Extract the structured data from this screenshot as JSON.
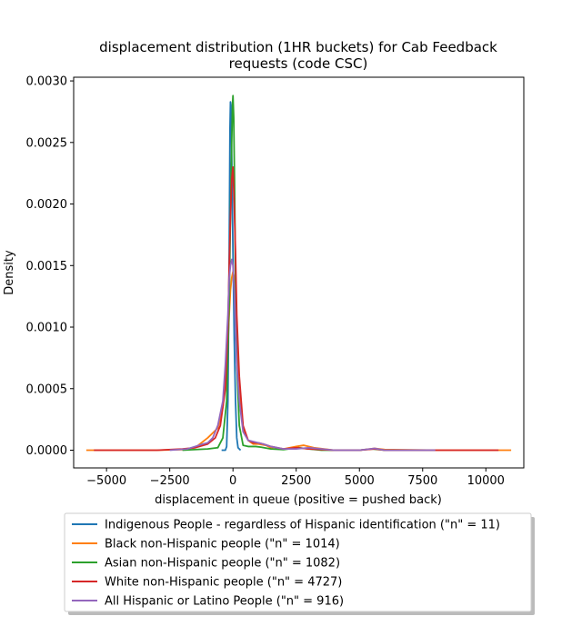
{
  "chart_data": {
    "type": "line",
    "title_line1": "displacement distribution (1HR buckets) for Cab Feedback",
    "title_line2": "requests (code CSC)",
    "xlabel": "displacement in queue (positive = pushed back)",
    "ylabel": "Density",
    "xlim": [
      -6300,
      11500
    ],
    "ylim": [
      -0.000144,
      0.00303
    ],
    "xticks": [
      -5000,
      -2500,
      0,
      2500,
      5000,
      7500,
      10000
    ],
    "xtick_labels": [
      "−5000",
      "−2500",
      "0",
      "2500",
      "5000",
      "7500",
      "10000"
    ],
    "yticks": [
      0.0,
      0.0005,
      0.001,
      0.0015,
      0.002,
      0.0025,
      0.003
    ],
    "ytick_labels": [
      "0.0000",
      "0.0005",
      "0.0010",
      "0.0015",
      "0.0020",
      "0.0025",
      "0.0030"
    ],
    "grid": false,
    "legend_position": "below-plot",
    "series": [
      {
        "name": "Indigenous People - regardless of Hispanic identification (\"n\" = 11)",
        "color": "#1f77b4",
        "x": [
          -450,
          -300,
          -250,
          -200,
          -150,
          -120,
          -100,
          -80,
          -50,
          0,
          50,
          100,
          150,
          200,
          300
        ],
        "y": [
          0.0,
          0.0,
          3e-05,
          0.0004,
          0.0016,
          0.0026,
          0.00283,
          0.0028,
          0.0024,
          0.0016,
          0.0009,
          0.0004,
          0.0001,
          2e-05,
          0.0
        ]
      },
      {
        "name": "Black non-Hispanic people (\"n\" = 1014)",
        "color": "#ff7f0e",
        "x": [
          -5800,
          -3000,
          -2000,
          -1500,
          -1000,
          -600,
          -400,
          -250,
          -150,
          -100,
          -50,
          0,
          50,
          100,
          150,
          250,
          400,
          600,
          800,
          1000,
          1300,
          1600,
          2000,
          2500,
          2800,
          3200,
          4000,
          5000,
          5600,
          6000,
          8000,
          10000,
          11000
        ],
        "y": [
          0.0,
          0.0,
          5e-06,
          2e-05,
          0.0001,
          0.00018,
          0.00035,
          0.0007,
          0.0011,
          0.0013,
          0.0014,
          0.00145,
          0.0014,
          0.0012,
          0.0009,
          0.0005,
          0.00018,
          8e-05,
          5e-05,
          5e-05,
          4e-05,
          1e-05,
          1e-05,
          3e-05,
          4e-05,
          2e-05,
          0.0,
          0.0,
          1.5e-05,
          5e-06,
          0.0,
          0.0,
          0.0
        ]
      },
      {
        "name": "Asian non-Hispanic people (\"n\" = 1082)",
        "color": "#2ca02c",
        "x": [
          -2000,
          -1000,
          -600,
          -400,
          -250,
          -150,
          -100,
          -50,
          -20,
          0,
          30,
          60,
          100,
          150,
          250,
          400,
          600,
          900,
          1100,
          1500,
          2000,
          2600,
          3000,
          3500,
          5000,
          5500,
          6000,
          8000
        ],
        "y": [
          0.0,
          1e-05,
          2e-05,
          0.0001,
          0.0004,
          0.0012,
          0.0019,
          0.0025,
          0.0028,
          0.00288,
          0.0027,
          0.0022,
          0.0014,
          0.0007,
          0.0002,
          4e-05,
          3e-05,
          3e-05,
          2.5e-05,
          1e-05,
          5e-06,
          2e-05,
          1e-05,
          0.0,
          0.0,
          1e-05,
          0.0,
          0.0
        ]
      },
      {
        "name": "White non-Hispanic people (\"n\" = 4727)",
        "color": "#d62728",
        "x": [
          -5500,
          -3000,
          -2000,
          -1500,
          -1000,
          -700,
          -500,
          -300,
          -200,
          -150,
          -100,
          -50,
          0,
          50,
          100,
          150,
          250,
          400,
          600,
          800,
          1000,
          1200,
          1500,
          2000,
          2500,
          3000,
          4000,
          5000,
          5600,
          6000,
          8000,
          10500
        ],
        "y": [
          0.0,
          0.0,
          1e-05,
          2e-05,
          5e-05,
          0.0001,
          0.0002,
          0.0005,
          0.001,
          0.0015,
          0.0019,
          0.0022,
          0.0023,
          0.002,
          0.0016,
          0.0011,
          0.0006,
          0.0002,
          8e-05,
          6e-05,
          6e-05,
          5e-05,
          3e-05,
          1e-05,
          2e-05,
          1e-05,
          0.0,
          0.0,
          1e-05,
          0.0,
          0.0,
          0.0
        ]
      },
      {
        "name": "All Hispanic or Latino People (\"n\" = 916)",
        "color": "#9467bd",
        "x": [
          -2500,
          -1800,
          -1500,
          -1200,
          -1000,
          -800,
          -600,
          -400,
          -300,
          -200,
          -150,
          -100,
          -50,
          0,
          50,
          100,
          150,
          250,
          400,
          600,
          800,
          1000,
          1200,
          1500,
          2000,
          2500,
          3000,
          3500,
          4000,
          5000,
          5600,
          6000,
          7000,
          8000
        ],
        "y": [
          0.0,
          1e-05,
          3e-05,
          5e-05,
          6e-05,
          0.0001,
          0.0002,
          0.0004,
          0.0007,
          0.0011,
          0.0014,
          0.0015,
          0.00155,
          0.0015,
          0.0013,
          0.001,
          0.0007,
          0.0004,
          0.00015,
          8e-05,
          7e-05,
          6e-05,
          5e-05,
          3e-05,
          1e-05,
          1e-05,
          2e-05,
          1e-05,
          0.0,
          0.0,
          1.5e-05,
          0.0,
          0.0,
          0.0
        ]
      }
    ]
  }
}
